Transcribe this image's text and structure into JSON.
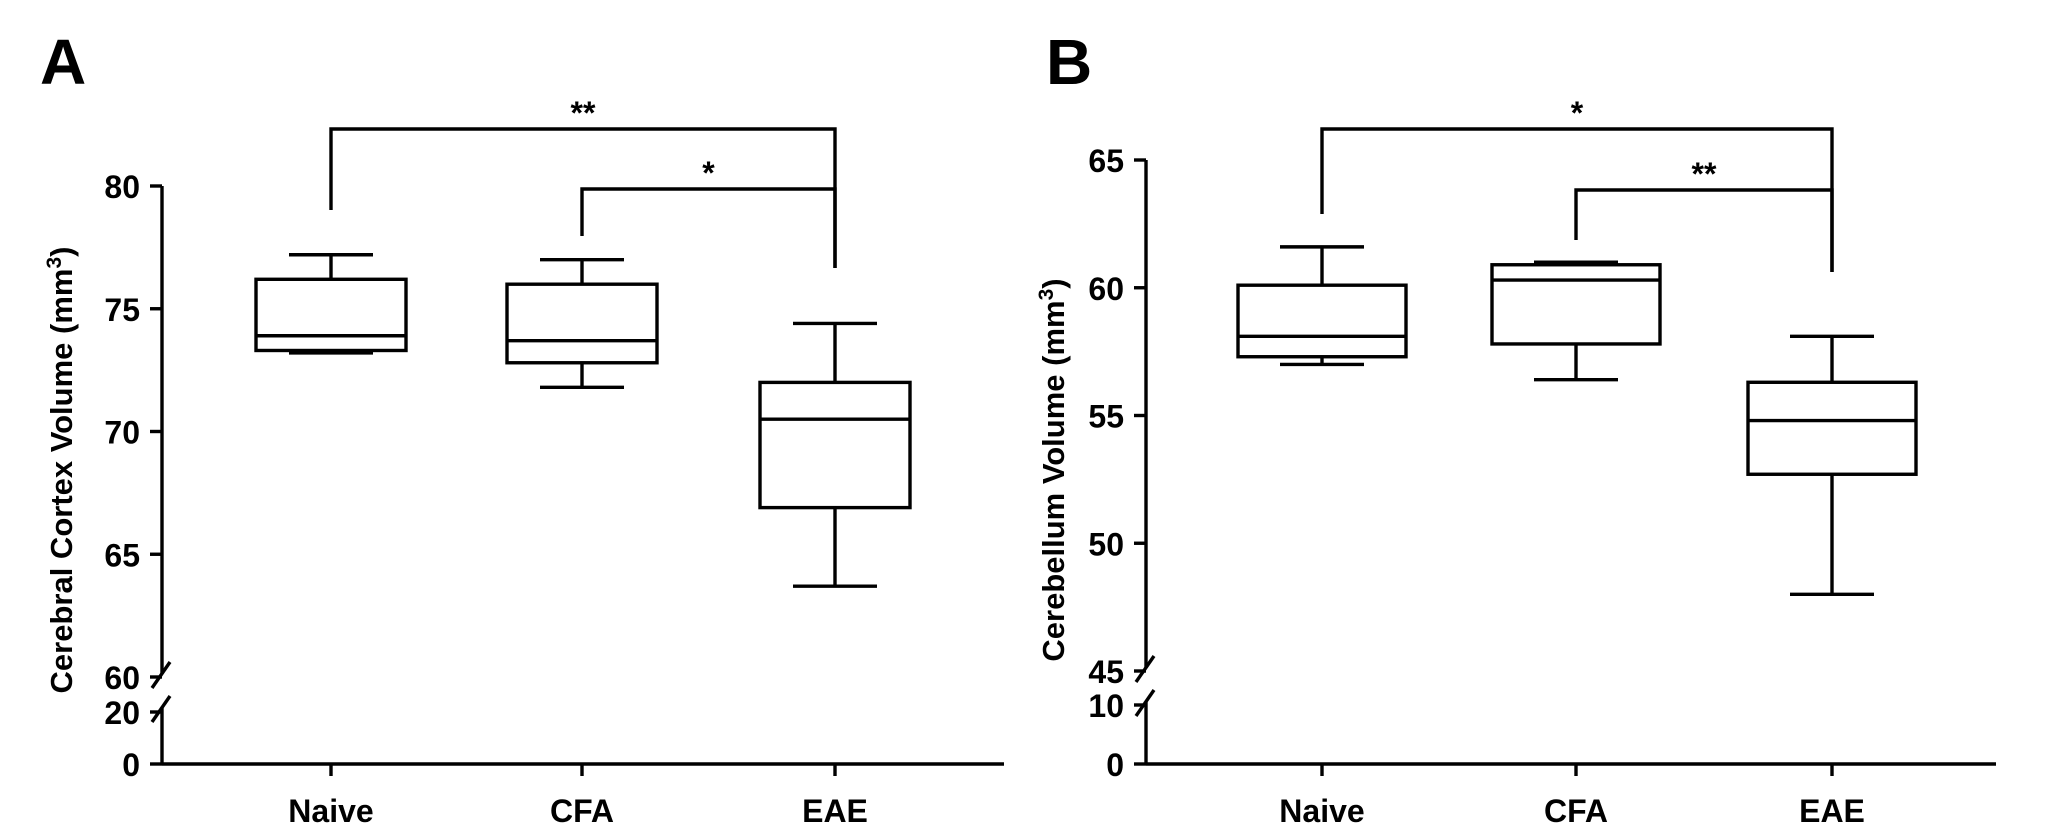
{
  "chart_data": [
    {
      "type": "box",
      "panel": "A",
      "ylabel": "Cerebral Cortex Volume (mm",
      "ylabel_sup": "3",
      "ylabel_close": ")",
      "categories": [
        "Naive",
        "CFA",
        "EAE"
      ],
      "axis_break": {
        "lower_ticks": [
          0,
          20
        ],
        "upper_ticks": [
          60,
          65,
          70,
          75,
          80
        ]
      },
      "ylim": [
        60,
        80
      ],
      "boxes": [
        {
          "category": "Naive",
          "whisker_low": 73.2,
          "q1": 73.3,
          "median": 73.9,
          "q3": 76.2,
          "whisker_high": 77.2
        },
        {
          "category": "CFA",
          "whisker_low": 71.8,
          "q1": 72.8,
          "median": 73.7,
          "q3": 76.0,
          "whisker_high": 77.0
        },
        {
          "category": "EAE",
          "whisker_low": 63.7,
          "q1": 66.9,
          "median": 70.5,
          "q3": 72.0,
          "whisker_high": 74.4
        }
      ],
      "significance": [
        {
          "from": "Naive",
          "to": "EAE",
          "label": "**"
        },
        {
          "from": "CFA",
          "to": "EAE",
          "label": "*"
        }
      ]
    },
    {
      "type": "box",
      "panel": "B",
      "ylabel": "Cerebellum Volume (mm",
      "ylabel_sup": "3",
      "ylabel_close": ")",
      "categories": [
        "Naive",
        "CFA",
        "EAE"
      ],
      "axis_break": {
        "lower_ticks": [
          0,
          10
        ],
        "upper_ticks": [
          45,
          50,
          55,
          60,
          65
        ]
      },
      "ylim": [
        45,
        65
      ],
      "boxes": [
        {
          "category": "Naive",
          "whisker_low": 57.0,
          "q1": 57.3,
          "median": 58.1,
          "q3": 60.1,
          "whisker_high": 61.6
        },
        {
          "category": "CFA",
          "whisker_low": 56.4,
          "q1": 57.8,
          "median": 60.3,
          "q3": 60.9,
          "whisker_high": 61.0
        },
        {
          "category": "EAE",
          "whisker_low": 48.0,
          "q1": 52.7,
          "median": 54.8,
          "q3": 56.3,
          "whisker_high": 58.1
        }
      ],
      "significance": [
        {
          "from": "Naive",
          "to": "EAE",
          "label": "*"
        },
        {
          "from": "CFA",
          "to": "EAE",
          "label": "**"
        }
      ]
    }
  ]
}
